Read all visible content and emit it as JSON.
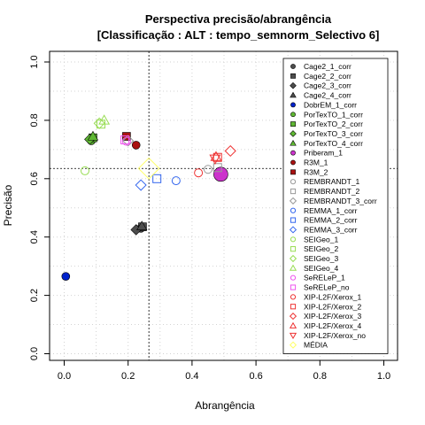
{
  "chart_data": {
    "type": "scatter",
    "title_line1": "Perspectiva precisão/abrangência",
    "title_line2": "[Classificação : ALT : tempo_semnorm_Selectivo 6]",
    "xlabel": "Abrangência",
    "ylabel": "Precisão",
    "xlim": [
      0,
      1
    ],
    "ylim": [
      0,
      1
    ],
    "xticks": [
      "0.0",
      "0.2",
      "0.4",
      "0.6",
      "0.8",
      "1.0"
    ],
    "yticks": [
      "0.0",
      "0.2",
      "0.4",
      "0.6",
      "0.8",
      "1.0"
    ],
    "grid": true,
    "legend_position": "right",
    "reference_lines": {
      "x": 0.265,
      "y": 0.635
    },
    "series": [
      {
        "name": "Cage2_1_corr",
        "color": "#4d4d4d",
        "shape": "circle",
        "filled": true,
        "points": [
          [
            0.24,
            0.43
          ]
        ]
      },
      {
        "name": "Cage2_2_corr",
        "color": "#4d4d4d",
        "shape": "square",
        "filled": true,
        "points": [
          [
            0.245,
            0.435
          ]
        ]
      },
      {
        "name": "Cage2_3_corr",
        "color": "#4d4d4d",
        "shape": "diamond",
        "filled": true,
        "points": [
          [
            0.225,
            0.425
          ]
        ]
      },
      {
        "name": "Cage2_4_corr",
        "color": "#4d4d4d",
        "shape": "triangle",
        "filled": true,
        "points": [
          [
            0.243,
            0.437
          ]
        ]
      },
      {
        "name": "DobrEM_1_corr",
        "color": "#0022cc",
        "shape": "circle",
        "filled": true,
        "points": [
          [
            0.005,
            0.265
          ]
        ]
      },
      {
        "name": "PorTexTO_1_corr",
        "color": "#5fb833",
        "shape": "circle",
        "filled": true,
        "points": [
          [
            0.085,
            0.73
          ]
        ]
      },
      {
        "name": "PorTexTO_2_corr",
        "color": "#5fb833",
        "shape": "square",
        "filled": true,
        "points": [
          [
            0.09,
            0.74
          ]
        ]
      },
      {
        "name": "PorTexTO_3_corr",
        "color": "#5fb833",
        "shape": "diamond",
        "filled": true,
        "points": [
          [
            0.08,
            0.735
          ]
        ]
      },
      {
        "name": "PorTexTO_4_corr",
        "color": "#5fb833",
        "shape": "triangle",
        "filled": true,
        "points": [
          [
            0.09,
            0.745
          ]
        ]
      },
      {
        "name": "Priberam_1",
        "color": "#cc33cc",
        "shape": "circle",
        "filled": true,
        "points": [
          [
            0.49,
            0.615
          ]
        ]
      },
      {
        "name": "R3M_1",
        "color": "#aa1111",
        "shape": "circle",
        "filled": true,
        "points": [
          [
            0.225,
            0.715
          ]
        ]
      },
      {
        "name": "R3M_2",
        "color": "#aa1111",
        "shape": "square",
        "filled": true,
        "points": [
          [
            0.195,
            0.745
          ]
        ]
      },
      {
        "name": "REMBRANDT_1",
        "color": "#999999",
        "shape": "circle",
        "filled": false,
        "points": [
          [
            0.45,
            0.632
          ]
        ]
      },
      {
        "name": "REMBRANDT_2",
        "color": "#999999",
        "shape": "square",
        "filled": false,
        "points": [
          [
            0.48,
            0.638
          ]
        ]
      },
      {
        "name": "REMBRANDT_3_corr",
        "color": "#999999",
        "shape": "diamond",
        "filled": false,
        "points": [
          [
            0.2,
            0.73
          ]
        ]
      },
      {
        "name": "REMMA_1_corr",
        "color": "#3366ee",
        "shape": "circle",
        "filled": false,
        "points": [
          [
            0.35,
            0.593
          ]
        ]
      },
      {
        "name": "REMMA_2_corr",
        "color": "#3366ee",
        "shape": "square",
        "filled": false,
        "points": [
          [
            0.29,
            0.6
          ]
        ]
      },
      {
        "name": "REMMA_3_corr",
        "color": "#3366ee",
        "shape": "diamond",
        "filled": false,
        "points": [
          [
            0.24,
            0.578
          ]
        ]
      },
      {
        "name": "SEIGeo_1",
        "color": "#99dd55",
        "shape": "circle",
        "filled": false,
        "points": [
          [
            0.065,
            0.627
          ]
        ]
      },
      {
        "name": "SEIGeo_2",
        "color": "#99dd55",
        "shape": "square",
        "filled": false,
        "points": [
          [
            0.115,
            0.787
          ]
        ]
      },
      {
        "name": "SEIGeo_3",
        "color": "#99dd55",
        "shape": "diamond",
        "filled": false,
        "points": [
          [
            0.11,
            0.79
          ]
        ]
      },
      {
        "name": "SEIGeo_4",
        "color": "#99dd55",
        "shape": "triangle",
        "filled": false,
        "points": [
          [
            0.125,
            0.8
          ]
        ]
      },
      {
        "name": "SeRELeP_1",
        "color": "#ee55ee",
        "shape": "circle",
        "filled": false,
        "points": [
          [
            0.195,
            0.728
          ]
        ]
      },
      {
        "name": "SeRELeP_no",
        "color": "#ee55ee",
        "shape": "square",
        "filled": false,
        "points": [
          [
            0.19,
            0.733
          ]
        ]
      },
      {
        "name": "XIP-L2F/Xerox_1",
        "color": "#ee3333",
        "shape": "circle",
        "filled": false,
        "points": [
          [
            0.42,
            0.62
          ]
        ]
      },
      {
        "name": "XIP-L2F/Xerox_2",
        "color": "#ee3333",
        "shape": "square",
        "filled": false,
        "points": [
          [
            0.48,
            0.673
          ]
        ]
      },
      {
        "name": "XIP-L2F/Xerox_3",
        "color": "#ee3333",
        "shape": "diamond",
        "filled": false,
        "points": [
          [
            0.52,
            0.695
          ]
        ]
      },
      {
        "name": "XIP-L2F/Xerox_4",
        "color": "#ee3333",
        "shape": "triangle",
        "filled": false,
        "points": [
          [
            0.475,
            0.675
          ]
        ]
      },
      {
        "name": "XIP-L2F/Xerox_no",
        "color": "#ee3333",
        "shape": "triangle-down",
        "filled": false,
        "points": [
          [
            0.472,
            0.668
          ]
        ]
      },
      {
        "name": "MÉDIA",
        "color": "#ffff66",
        "shape": "diamond",
        "filled": false,
        "points": [
          [
            0.265,
            0.635
          ]
        ]
      }
    ]
  }
}
